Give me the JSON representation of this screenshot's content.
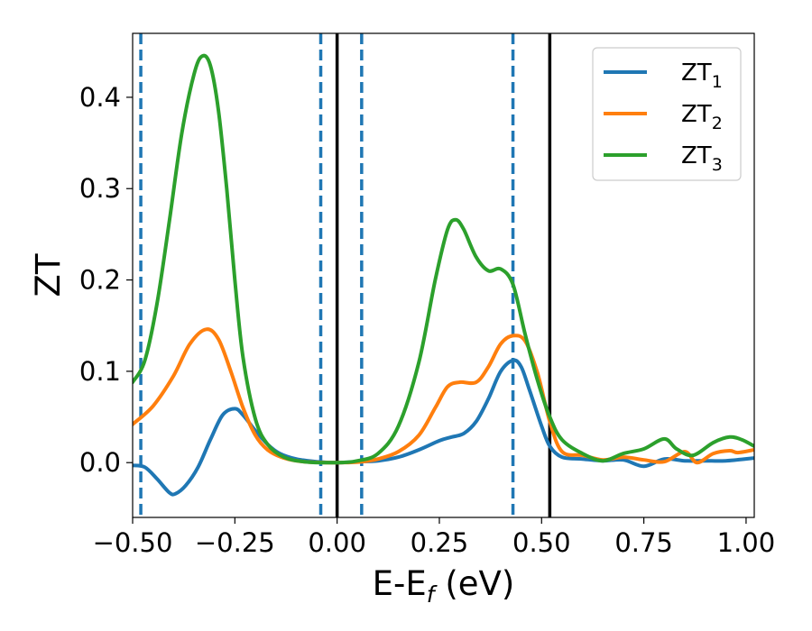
{
  "chart_data": {
    "type": "line",
    "xlabel": "E-E",
    "xlabel_sub": "f",
    "xlabel_unit": " (eV)",
    "ylabel": "ZT",
    "xlim": [
      -0.5,
      1.02
    ],
    "ylim": [
      -0.06,
      0.47
    ],
    "xticks": [
      -0.5,
      -0.25,
      0.0,
      0.25,
      0.5,
      0.75,
      1.0
    ],
    "xtick_labels": [
      "−0.50",
      "−0.25",
      "0.00",
      "0.25",
      "0.50",
      "0.75",
      "1.00"
    ],
    "yticks": [
      0.0,
      0.1,
      0.2,
      0.3,
      0.4
    ],
    "ytick_labels": [
      "0.0",
      "0.1",
      "0.2",
      "0.3",
      "0.4"
    ],
    "grid": false,
    "legend_position": "top-right",
    "vlines_dashed": {
      "x": [
        -0.48,
        -0.04,
        0.06,
        0.43
      ],
      "color": "#1f77b4"
    },
    "vlines_solid": {
      "x": [
        0.0,
        0.52
      ],
      "color": "#000000"
    },
    "series": [
      {
        "name": "ZT",
        "name_sub": "1",
        "color": "#1f77b4",
        "points": [
          [
            -0.5,
            -0.003
          ],
          [
            -0.47,
            -0.005
          ],
          [
            -0.44,
            -0.018
          ],
          [
            -0.41,
            -0.033
          ],
          [
            -0.395,
            -0.034
          ],
          [
            -0.37,
            -0.025
          ],
          [
            -0.34,
            -0.005
          ],
          [
            -0.31,
            0.025
          ],
          [
            -0.28,
            0.052
          ],
          [
            -0.25,
            0.059
          ],
          [
            -0.23,
            0.052
          ],
          [
            -0.2,
            0.035
          ],
          [
            -0.17,
            0.02
          ],
          [
            -0.14,
            0.01
          ],
          [
            -0.1,
            0.004
          ],
          [
            -0.05,
            0.001
          ],
          [
            0.0,
            0.0
          ],
          [
            0.05,
            0.001
          ],
          [
            0.1,
            0.002
          ],
          [
            0.15,
            0.006
          ],
          [
            0.2,
            0.014
          ],
          [
            0.25,
            0.024
          ],
          [
            0.28,
            0.028
          ],
          [
            0.31,
            0.032
          ],
          [
            0.34,
            0.045
          ],
          [
            0.37,
            0.07
          ],
          [
            0.4,
            0.1
          ],
          [
            0.43,
            0.112
          ],
          [
            0.45,
            0.105
          ],
          [
            0.47,
            0.08
          ],
          [
            0.5,
            0.04
          ],
          [
            0.52,
            0.018
          ],
          [
            0.55,
            0.006
          ],
          [
            0.6,
            0.004
          ],
          [
            0.65,
            0.002
          ],
          [
            0.7,
            0.003
          ],
          [
            0.75,
            -0.004
          ],
          [
            0.8,
            0.004
          ],
          [
            0.85,
            0.002
          ],
          [
            0.9,
            0.002
          ],
          [
            0.95,
            0.002
          ],
          [
            1.02,
            0.005
          ]
        ]
      },
      {
        "name": "ZT",
        "name_sub": "2",
        "color": "#ff7f0e",
        "points": [
          [
            -0.5,
            0.042
          ],
          [
            -0.45,
            0.062
          ],
          [
            -0.4,
            0.095
          ],
          [
            -0.36,
            0.13
          ],
          [
            -0.32,
            0.146
          ],
          [
            -0.29,
            0.135
          ],
          [
            -0.26,
            0.1
          ],
          [
            -0.23,
            0.06
          ],
          [
            -0.2,
            0.03
          ],
          [
            -0.17,
            0.014
          ],
          [
            -0.13,
            0.005
          ],
          [
            -0.08,
            0.001
          ],
          [
            0.0,
            0.0
          ],
          [
            0.06,
            0.001
          ],
          [
            0.1,
            0.004
          ],
          [
            0.15,
            0.012
          ],
          [
            0.2,
            0.03
          ],
          [
            0.24,
            0.06
          ],
          [
            0.27,
            0.083
          ],
          [
            0.3,
            0.088
          ],
          [
            0.34,
            0.088
          ],
          [
            0.37,
            0.105
          ],
          [
            0.4,
            0.13
          ],
          [
            0.43,
            0.139
          ],
          [
            0.46,
            0.133
          ],
          [
            0.49,
            0.098
          ],
          [
            0.52,
            0.045
          ],
          [
            0.55,
            0.012
          ],
          [
            0.6,
            0.008
          ],
          [
            0.65,
            0.003
          ],
          [
            0.7,
            0.006
          ],
          [
            0.75,
            0.003
          ],
          [
            0.8,
            0.001
          ],
          [
            0.85,
            0.012
          ],
          [
            0.88,
            0.0
          ],
          [
            0.92,
            0.01
          ],
          [
            0.96,
            0.013
          ],
          [
            0.98,
            0.011
          ],
          [
            1.02,
            0.014
          ]
        ]
      },
      {
        "name": "ZT",
        "name_sub": "3",
        "color": "#2ca02c",
        "points": [
          [
            -0.5,
            0.088
          ],
          [
            -0.47,
            0.112
          ],
          [
            -0.44,
            0.175
          ],
          [
            -0.41,
            0.265
          ],
          [
            -0.38,
            0.36
          ],
          [
            -0.35,
            0.425
          ],
          [
            -0.33,
            0.445
          ],
          [
            -0.31,
            0.435
          ],
          [
            -0.29,
            0.385
          ],
          [
            -0.27,
            0.3
          ],
          [
            -0.25,
            0.2
          ],
          [
            -0.23,
            0.115
          ],
          [
            -0.2,
            0.048
          ],
          [
            -0.17,
            0.02
          ],
          [
            -0.13,
            0.006
          ],
          [
            -0.08,
            0.001
          ],
          [
            0.0,
            0.0
          ],
          [
            0.05,
            0.002
          ],
          [
            0.1,
            0.01
          ],
          [
            0.15,
            0.04
          ],
          [
            0.2,
            0.11
          ],
          [
            0.24,
            0.2
          ],
          [
            0.27,
            0.255
          ],
          [
            0.29,
            0.266
          ],
          [
            0.31,
            0.255
          ],
          [
            0.34,
            0.225
          ],
          [
            0.37,
            0.21
          ],
          [
            0.4,
            0.212
          ],
          [
            0.43,
            0.195
          ],
          [
            0.46,
            0.14
          ],
          [
            0.49,
            0.09
          ],
          [
            0.52,
            0.05
          ],
          [
            0.55,
            0.025
          ],
          [
            0.6,
            0.01
          ],
          [
            0.65,
            0.002
          ],
          [
            0.7,
            0.01
          ],
          [
            0.75,
            0.015
          ],
          [
            0.8,
            0.026
          ],
          [
            0.83,
            0.015
          ],
          [
            0.87,
            0.008
          ],
          [
            0.92,
            0.022
          ],
          [
            0.96,
            0.028
          ],
          [
            0.99,
            0.025
          ],
          [
            1.02,
            0.018
          ]
        ]
      }
    ]
  }
}
